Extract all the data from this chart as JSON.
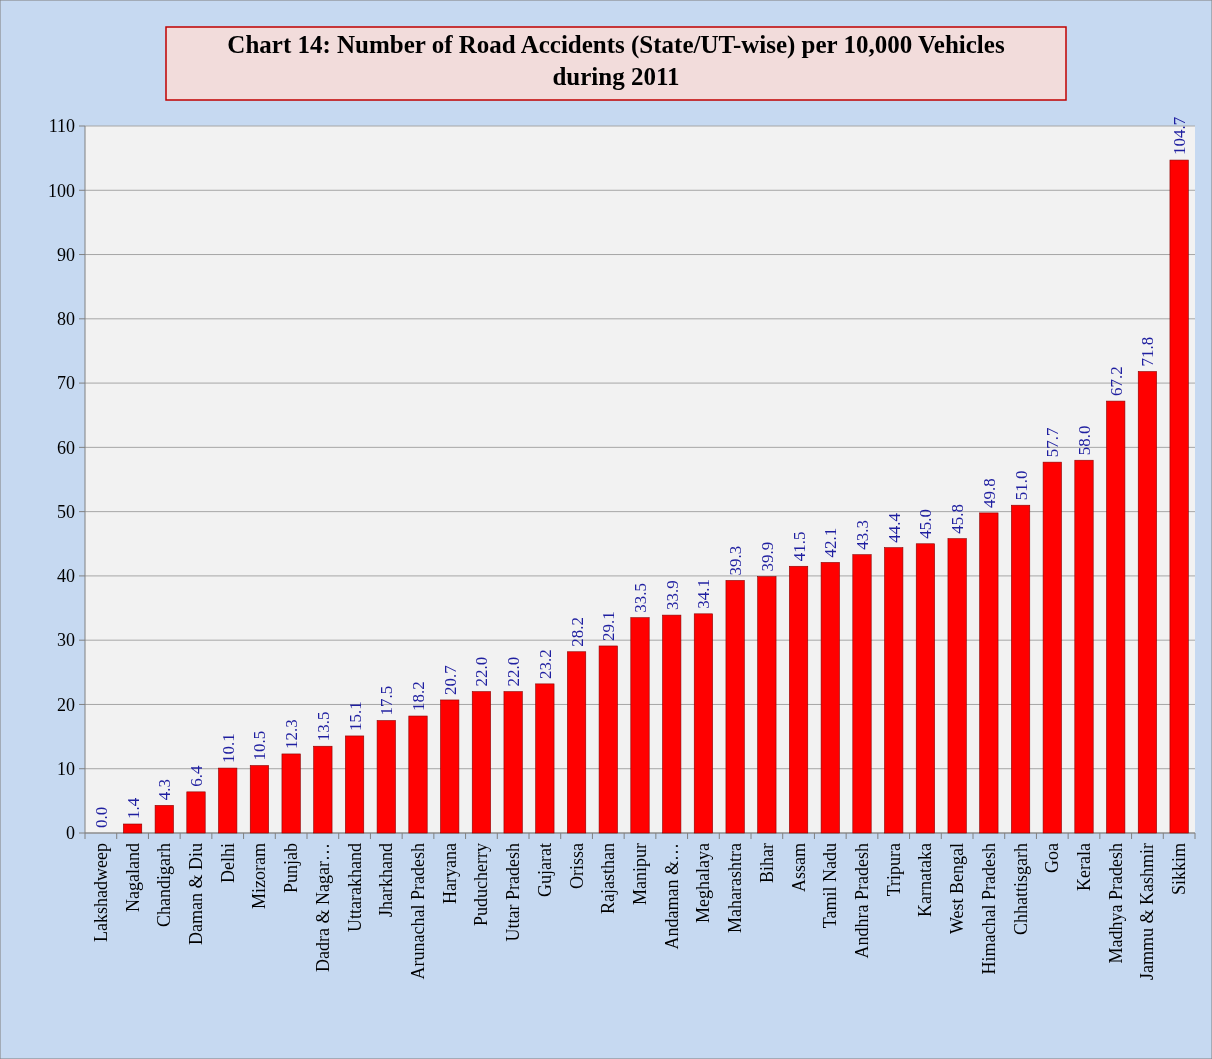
{
  "chart_data": {
    "type": "bar",
    "title": "Chart 14: Number of Road Accidents (State/UT-wise)  per 10,000 Vehicles during 2011",
    "categories": [
      "Lakshadweep",
      "Nagaland",
      "Chandigarh",
      "Daman & Diu",
      "Delhi",
      "Mizoram",
      "Punjab",
      "Dadra & Nagar…",
      "Uttarakhand",
      "Jharkhand",
      "Arunachal Pradesh",
      "Haryana",
      "Puducherry",
      "Uttar Pradesh",
      "Gujarat",
      "Orissa",
      "Rajasthan",
      "Manipur",
      "Andaman &…",
      "Meghalaya",
      "Maharashtra",
      "Bihar",
      "Assam",
      "Tamil Nadu",
      "Andhra Pradesh",
      "Tripura",
      "Karnataka",
      "West Bengal",
      "Himachal Pradesh",
      "Chhattisgarh",
      "Goa",
      "Kerala",
      "Madhya Pradesh",
      "Jammu & Kashmir",
      "Sikkim"
    ],
    "values": [
      0.0,
      1.4,
      4.3,
      6.4,
      10.1,
      10.5,
      12.3,
      13.5,
      15.1,
      17.5,
      18.2,
      20.7,
      22.0,
      22.0,
      23.2,
      28.2,
      29.1,
      33.5,
      33.9,
      34.1,
      39.3,
      39.9,
      41.5,
      42.1,
      43.3,
      44.4,
      45.0,
      45.8,
      49.8,
      51.0,
      57.7,
      58.0,
      67.2,
      71.8,
      104.7
    ],
    "value_labels": [
      "0.0",
      "1.4",
      "4.3",
      "6.4",
      "10.1",
      "10.5",
      "12.3",
      "13.5",
      "15.1",
      "17.5",
      "18.2",
      "20.7",
      "22.0",
      "22.0",
      "23.2",
      "28.2",
      "29.1",
      "33.5",
      "33.9",
      "34.1",
      "39.3",
      "39.9",
      "41.5",
      "42.1",
      "43.3",
      "44.4",
      "45.0",
      "45.8",
      "49.8",
      "51.0",
      "57.7",
      "58.0",
      "67.2",
      "71.8",
      "104.7"
    ],
    "color": "#ff0000",
    "ylim": [
      0,
      110
    ],
    "yticks": [
      0,
      10,
      20,
      30,
      40,
      50,
      60,
      70,
      80,
      90,
      100,
      110
    ],
    "grid": "y"
  }
}
